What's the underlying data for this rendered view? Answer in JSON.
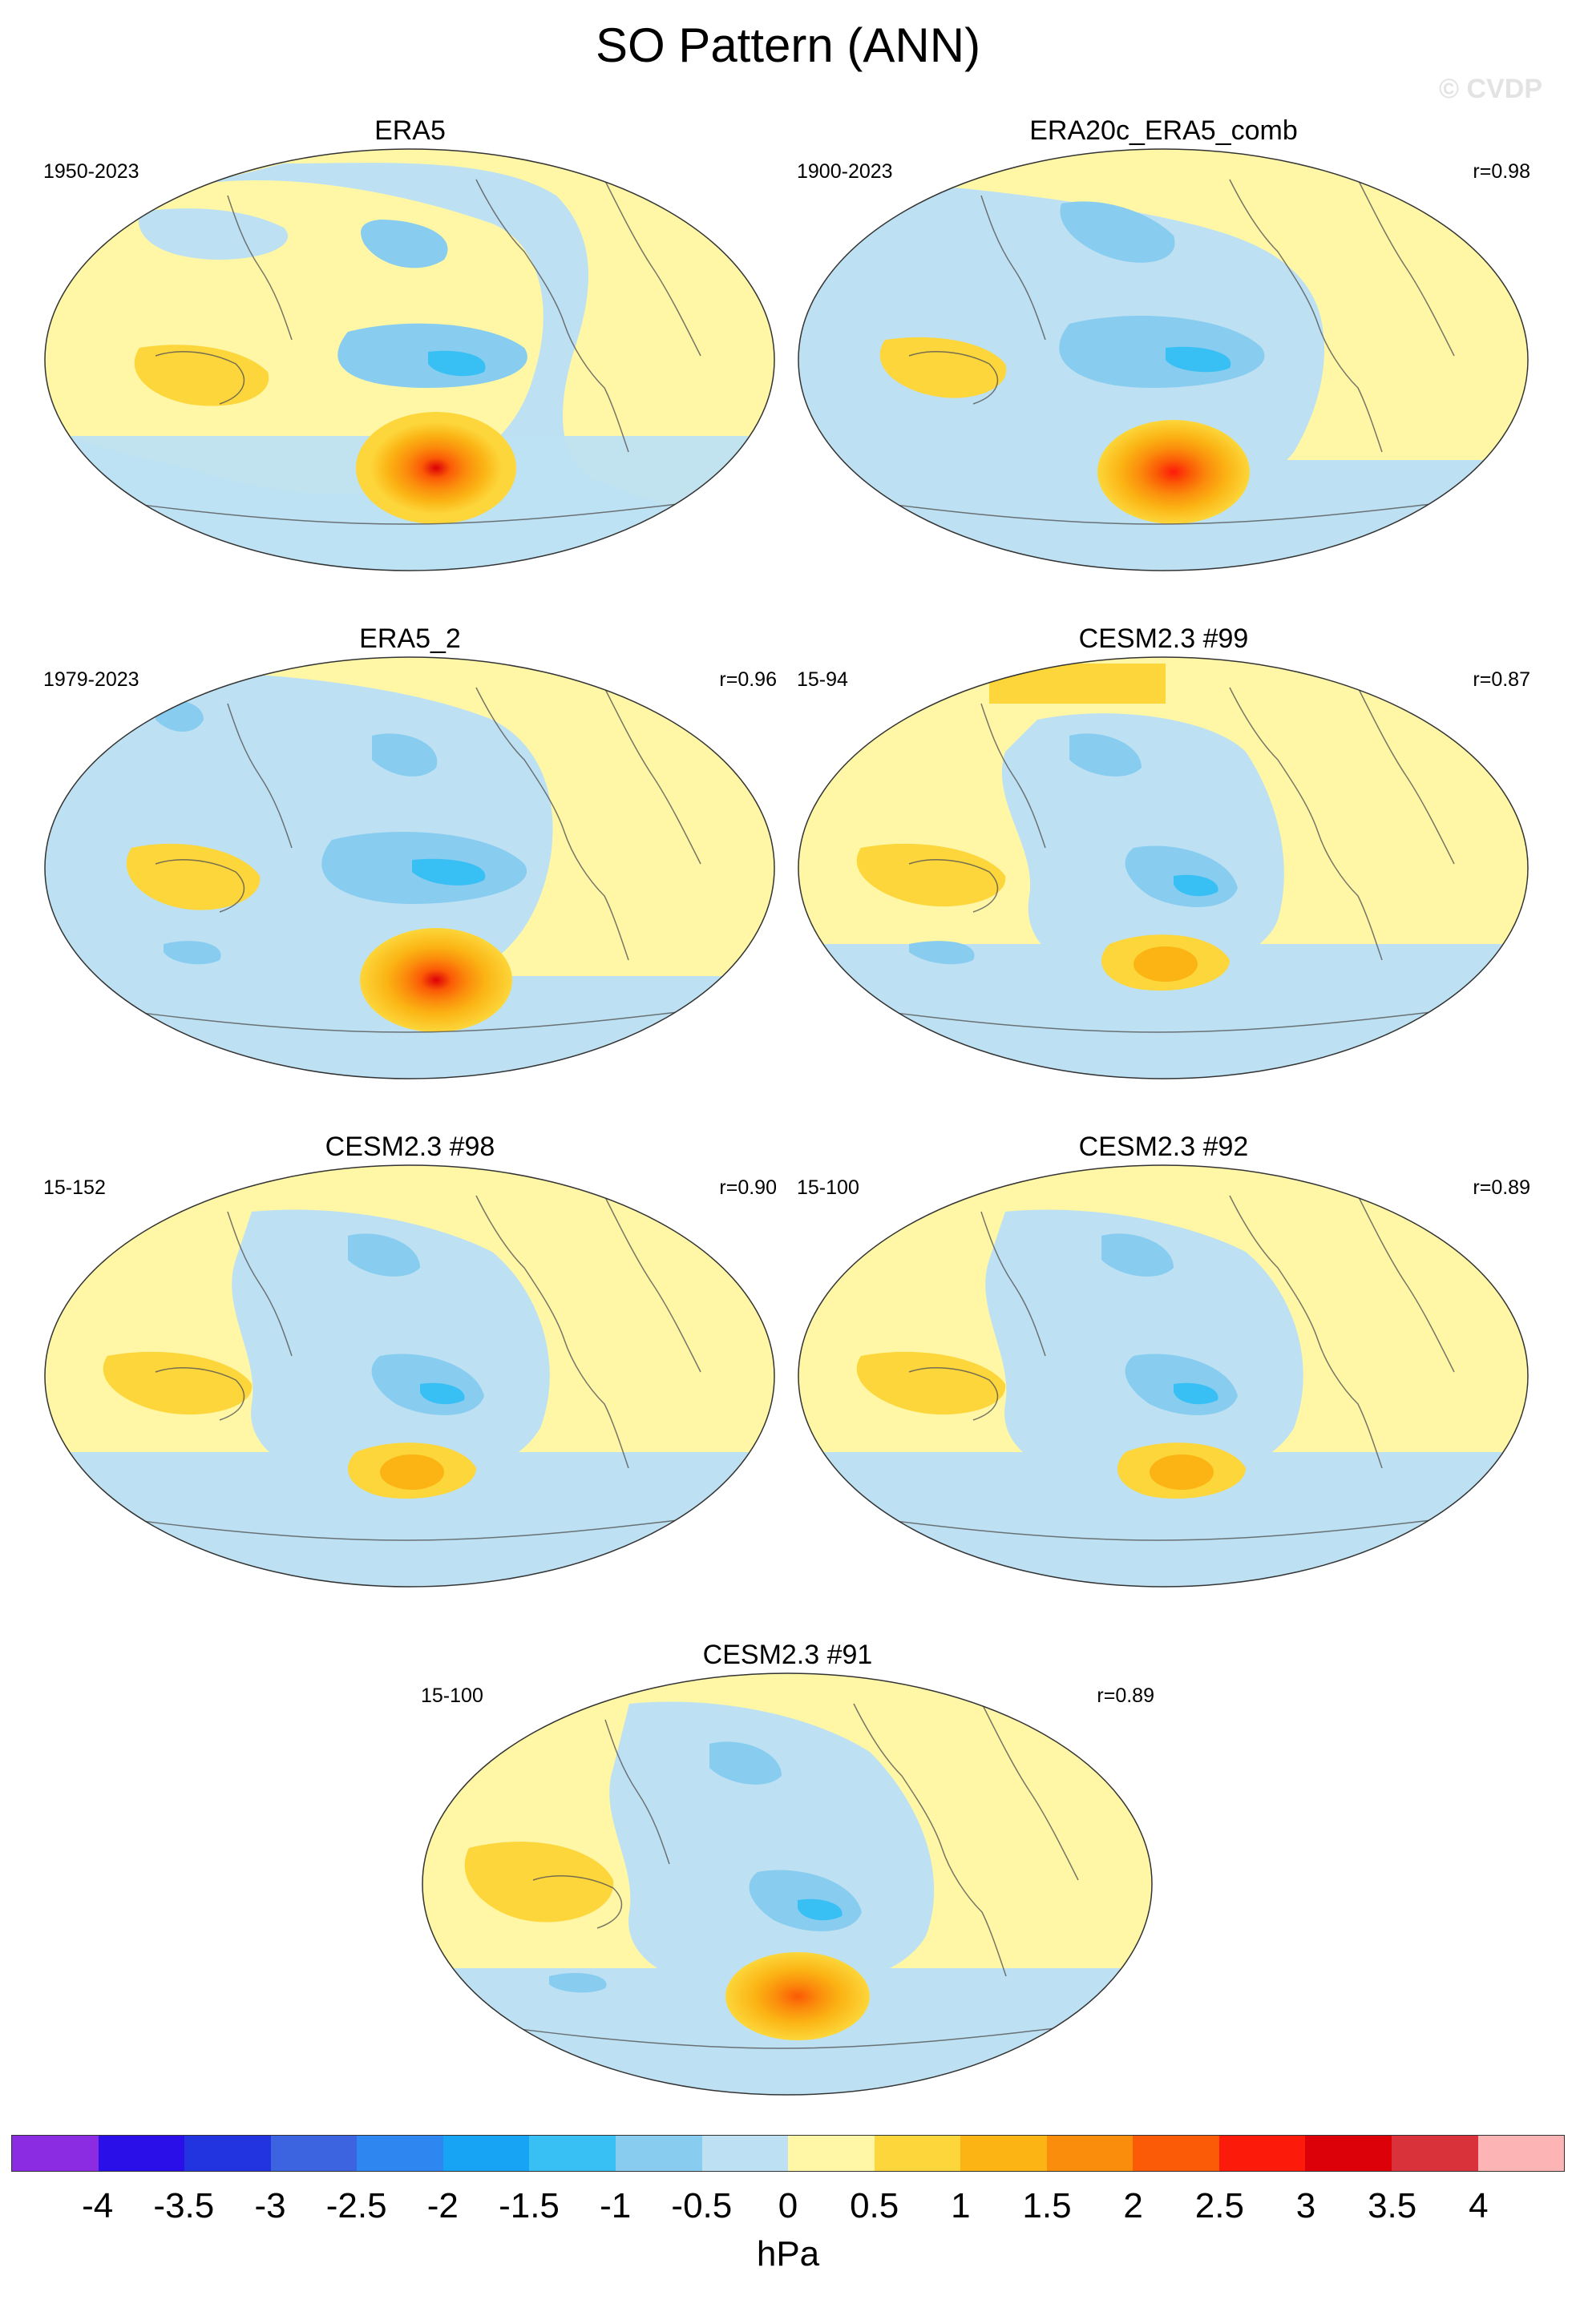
{
  "title": "SO Pattern (ANN)",
  "watermark": "© CVDP",
  "panels": [
    {
      "title": "ERA5",
      "period": "1950-2023",
      "corr": ""
    },
    {
      "title": "ERA20c_ERA5_comb",
      "period": "1900-2023",
      "corr": "r=0.98"
    },
    {
      "title": "ERA5_2",
      "period": "1979-2023",
      "corr": "r=0.96"
    },
    {
      "title": "CESM2.3 #99",
      "period": "15-94",
      "corr": "r=0.87"
    },
    {
      "title": "CESM2.3 #98",
      "period": "15-152",
      "corr": "r=0.90"
    },
    {
      "title": "CESM2.3 #92",
      "period": "15-100",
      "corr": "r=0.89"
    },
    {
      "title": "CESM2.3 #91",
      "period": "15-100",
      "corr": "r=0.89"
    }
  ],
  "colorbar": {
    "units": "hPa",
    "labels": [
      "-4",
      "-3.5",
      "-3",
      "-2.5",
      "-2",
      "-1.5",
      "-1",
      "-0.5",
      "0",
      "0.5",
      "1",
      "1.5",
      "2",
      "2.5",
      "3",
      "3.5",
      "4"
    ],
    "colors": [
      "#8b2be2",
      "#2a0fe8",
      "#2233e0",
      "#3c64e0",
      "#2e87f0",
      "#18a4f5",
      "#38c0f5",
      "#88ccf0",
      "#bde1f2",
      "#fff7a6",
      "#fcd63a",
      "#fbb414",
      "#fb8d0c",
      "#fb5a06",
      "#fc1a0a",
      "#dc0008",
      "#d9323a",
      "#fcb4b4"
    ]
  },
  "map": {
    "ocean_background": "#bde1f2",
    "land_background": "#fff7a6"
  }
}
